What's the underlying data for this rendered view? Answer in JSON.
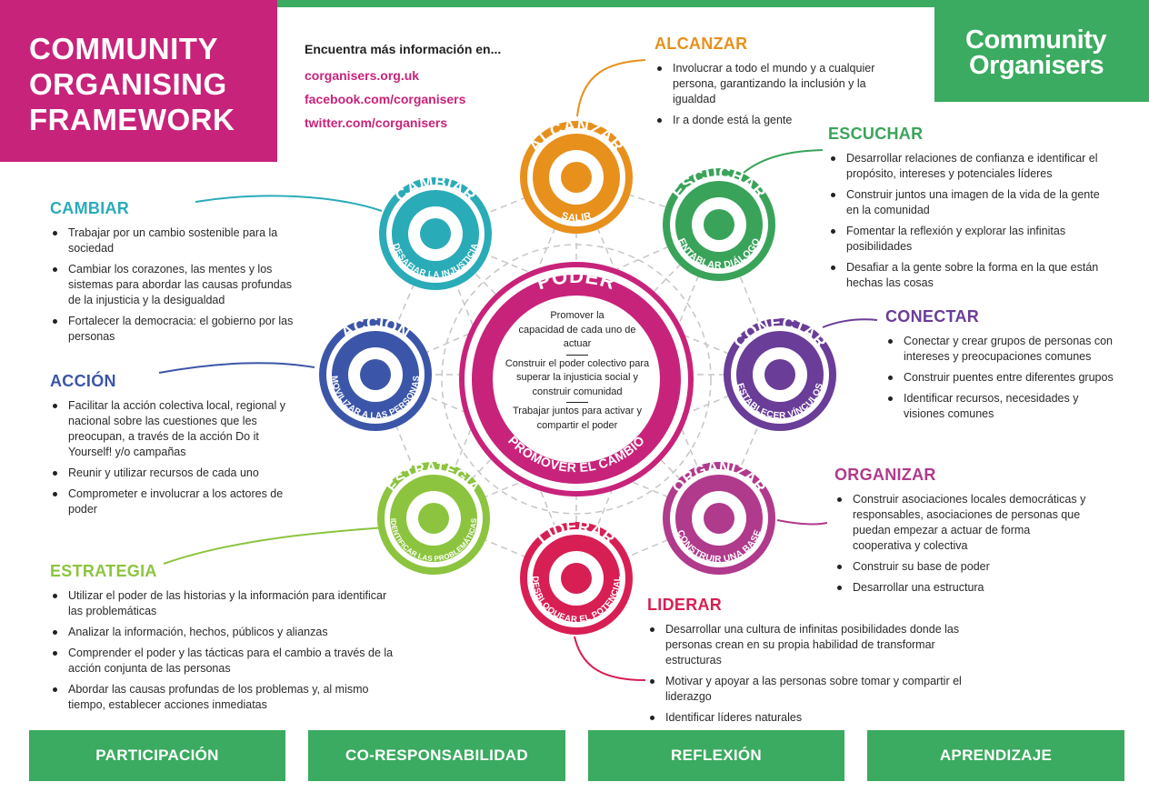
{
  "title": {
    "lines": [
      "COMMUNITY",
      "ORGANISING",
      "FRAMEWORK"
    ]
  },
  "logo": {
    "line1": "Community",
    "line2": "Organisers"
  },
  "info": {
    "heading": "Encuentra más información en...",
    "links": [
      "corganisers.org.uk",
      "facebook.com/corganisers",
      "twitter.com/corganisers"
    ]
  },
  "colors": {
    "magenta": "#c8237a",
    "green": "#3aab60",
    "orange": "#e8901c",
    "teal": "#2aabb8",
    "navy": "#3b56a8",
    "lime": "#8cc43f",
    "crimson": "#d81f54",
    "pink": "#b03a8c",
    "purple": "#6a3d99",
    "green_ring": "#3aa35a"
  },
  "circles": {
    "alcanzar": {
      "top": "ALCANZAR",
      "bottom": "SALIR"
    },
    "escuchar": {
      "top": "ESCUCHAR",
      "bottom": "ENTABLAR DIÁLOGO"
    },
    "conectar": {
      "top": "CONECTAR",
      "bottom": "ESTABLECER VÍNCULOS"
    },
    "organizar": {
      "top": "ORGANIZAR",
      "bottom": "CONSTRUIR UNA BASE"
    },
    "liderar": {
      "top": "LIDERAR",
      "bottom": "DESBLOQUEAR EL POTENCIAL"
    },
    "estrategia": {
      "top": "ESTRATEGIA",
      "bottom": "IDENTIFICAR LAS PROBLEMÁTICAS"
    },
    "accion": {
      "top": "ACCIÓN",
      "bottom": "MOVILIZAR A LAS PERSONAS"
    },
    "cambiar": {
      "top": "CAMBIAR",
      "bottom": "DESAFIAR LA INJUSTICIA"
    },
    "poder": {
      "top": "PODER",
      "bottom": "PROMOVER EL CAMBIO"
    }
  },
  "poder_text": {
    "p1": [
      "Promover la",
      "capacidad de cada uno de",
      "actuar"
    ],
    "p2": [
      "Construir el poder colectivo para",
      "superar la injusticia social y",
      "construir comunidad"
    ],
    "p3": [
      "Trabajar juntos para activar y",
      "compartir el poder"
    ]
  },
  "sections": {
    "alcanzar": {
      "title": "ALCANZAR",
      "items": [
        "Involucrar a todo el mundo y a cualquier persona, garantizando la inclusión y la igualdad",
        "Ir a donde está la gente"
      ]
    },
    "escuchar": {
      "title": "ESCUCHAR",
      "items": [
        "Desarrollar relaciones de confianza e identificar el propósito, intereses y potenciales líderes",
        "Construir juntos una imagen de la vida de la gente en la comunidad",
        "Fomentar la reflexión y explorar las infinitas posibilidades",
        "Desafiar a la gente sobre la forma en la que están hechas las cosas"
      ]
    },
    "conectar": {
      "title": "CONECTAR",
      "items": [
        "Conectar y crear grupos de personas con intereses y preocupaciones comunes",
        "Construir puentes entre diferentes grupos",
        "Identificar recursos, necesidades y visiones comunes"
      ]
    },
    "organizar": {
      "title": "ORGANIZAR",
      "items": [
        "Construir asociaciones locales democráticas y responsables, asociaciones de personas que puedan empezar a actuar de forma cooperativa y colectiva",
        "Construir su base de poder",
        "Desarrollar una estructura"
      ]
    },
    "liderar": {
      "title": "LIDERAR",
      "items": [
        "Desarrollar una cultura de infinitas posibilidades donde las personas crean en su propia habilidad de transformar estructuras",
        "Motivar y apoyar a las personas sobre tomar y compartir el liderazgo",
        "Identificar líderes naturales"
      ]
    },
    "cambiar": {
      "title": "CAMBIAR",
      "items": [
        "Trabajar por un cambio sostenible para la sociedad",
        "Cambiar los corazones, las mentes y los sistemas para abordar las causas profundas de la injusticia y la desigualdad",
        "Fortalecer la democracia: el gobierno por las personas"
      ]
    },
    "accion": {
      "title": "ACCIÓN",
      "items": [
        "Facilitar la acción colectiva local, regional y nacional sobre las cuestiones que les preocupan, a través de la acción Do it Yourself! y/o campañas",
        "Reunir y utilizar recursos de cada uno",
        "Comprometer e involucrar a los actores de poder"
      ]
    },
    "estrategia": {
      "title": "ESTRATEGIA",
      "items": [
        "Utilizar el poder de las historias y la información para identificar las problemáticas",
        "Analizar la información, hechos, públicos y alianzas",
        "Comprender el poder y las tácticas para el cambio a través de la acción conjunta de las personas",
        "Abordar las causas profundas de los problemas y, al mismo tiempo, establecer acciones inmediatas"
      ]
    }
  },
  "bottom": [
    "PARTICIPACIÓN",
    "CO-RESPONSABILIDAD",
    "REFLEXIÓN",
    "APRENDIZAJE"
  ]
}
